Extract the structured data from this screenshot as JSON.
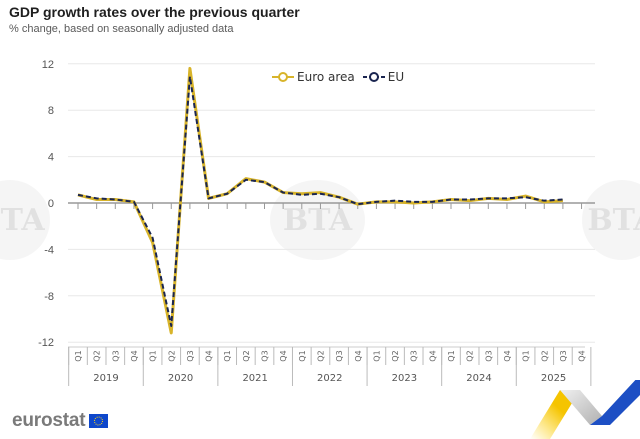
{
  "header": {
    "title": "GDP growth rates over the previous quarter",
    "subtitle": "% change, based on seasonally adjusted data"
  },
  "legend": {
    "items": [
      {
        "label": "Euro area",
        "color": "#d8b42a"
      },
      {
        "label": "EU",
        "color": "#1a2550"
      }
    ]
  },
  "footer": {
    "brand": "eurostat",
    "watermark": "BTA"
  },
  "colors": {
    "euro_area": "#d8b42a",
    "eu": "#1a2550",
    "grid": "#e8e8e8",
    "axis": "#999999",
    "flag_blue": "#0e47cb",
    "flag_star": "#ffd617"
  },
  "chart_data": {
    "type": "line",
    "title": "GDP growth rates over the previous quarter",
    "subtitle": "% change, based on seasonally adjusted data",
    "xlabel": "",
    "ylabel": "",
    "ylim": [
      -12,
      12
    ],
    "yticks": [
      12,
      8,
      4,
      0,
      -4,
      -8,
      -12
    ],
    "grid": true,
    "legend_position": "top-center",
    "x_years": [
      "2019",
      "2020",
      "2021",
      "2022",
      "2023",
      "2024",
      "2025"
    ],
    "x_quarters": [
      "Q1",
      "Q2",
      "Q3",
      "Q4"
    ],
    "categories": [
      "2019-Q1",
      "2019-Q2",
      "2019-Q3",
      "2019-Q4",
      "2020-Q1",
      "2020-Q2",
      "2020-Q3",
      "2020-Q4",
      "2021-Q1",
      "2021-Q2",
      "2021-Q3",
      "2021-Q4",
      "2022-Q1",
      "2022-Q2",
      "2022-Q3",
      "2022-Q4",
      "2023-Q1",
      "2023-Q2",
      "2023-Q3",
      "2023-Q4",
      "2024-Q1",
      "2024-Q2",
      "2024-Q3",
      "2024-Q4",
      "2025-Q1",
      "2025-Q2",
      "2025-Q3",
      "2025-Q4"
    ],
    "series": [
      {
        "name": "Euro area",
        "values": [
          0.7,
          0.3,
          0.3,
          0.1,
          -3.4,
          -11.2,
          11.6,
          0.4,
          0.8,
          2.1,
          1.8,
          0.9,
          0.8,
          0.9,
          0.5,
          -0.1,
          0.1,
          0.1,
          0.0,
          0.1,
          0.3,
          0.2,
          0.4,
          0.3,
          0.6,
          0.1,
          0.2,
          null
        ]
      },
      {
        "name": "EU",
        "values": [
          0.7,
          0.4,
          0.3,
          0.1,
          -3.0,
          -10.6,
          10.9,
          0.4,
          0.8,
          2.0,
          1.8,
          0.9,
          0.7,
          0.8,
          0.5,
          -0.1,
          0.1,
          0.2,
          0.1,
          0.1,
          0.3,
          0.3,
          0.4,
          0.4,
          0.5,
          0.2,
          0.3,
          null
        ]
      }
    ]
  }
}
